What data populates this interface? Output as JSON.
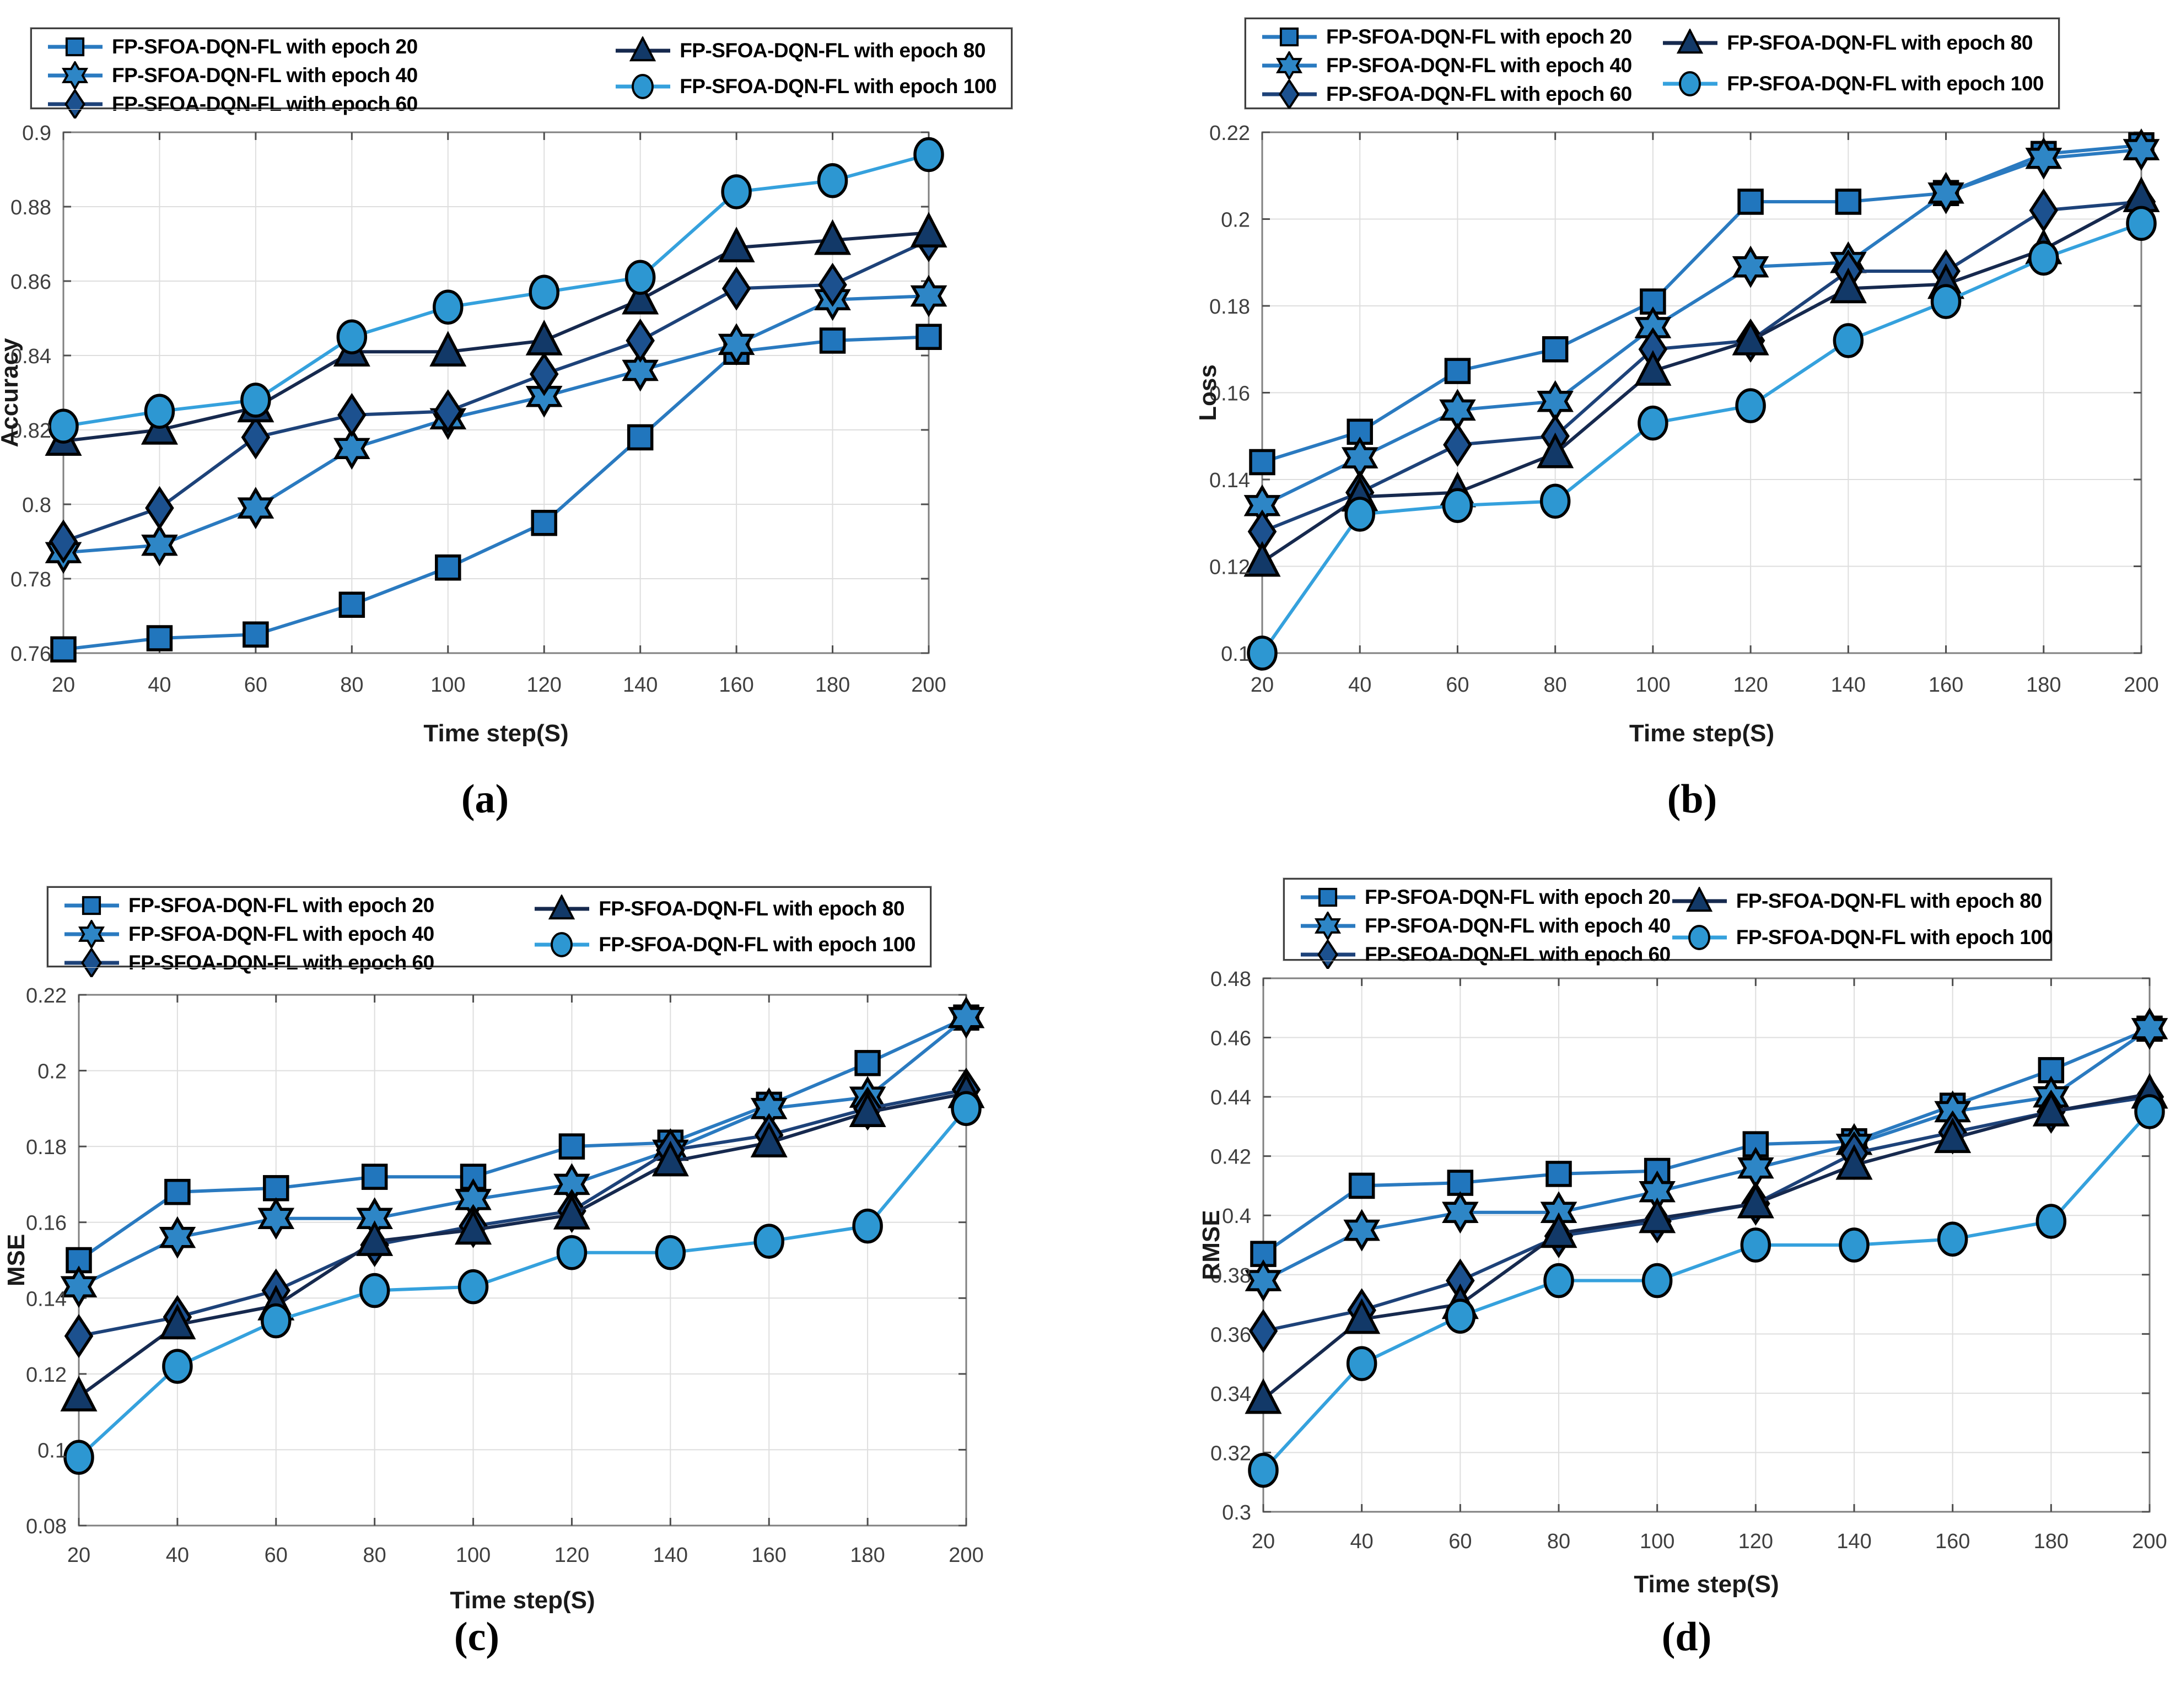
{
  "figure_caption_labels": [
    "(a)",
    "(b)",
    "(c)",
    "(d)"
  ],
  "chart_data": [
    {
      "id": "a",
      "type": "line",
      "caption": "(a)",
      "xlabel": "Time step(S)",
      "ylabel": "Accuracy",
      "xlim": [
        20,
        200
      ],
      "ylim": [
        0.76,
        0.9
      ],
      "x": [
        20,
        40,
        60,
        80,
        100,
        120,
        140,
        160,
        180,
        200
      ],
      "xtick_labels": [
        "20",
        "40",
        "60",
        "80",
        "100",
        "120",
        "140",
        "160",
        "180",
        "200"
      ],
      "ytick_values": [
        0.76,
        0.78,
        0.8,
        0.82,
        0.84,
        0.86,
        0.88,
        0.9
      ],
      "ytick_labels": [
        "0.76",
        "0.78",
        "0.8",
        "0.82",
        "0.84",
        "0.86",
        "0.88",
        "0.9"
      ],
      "grid": true,
      "legend_position": "top",
      "series": [
        {
          "name": "FP-SFOA-DQN-FL with epoch 20",
          "marker": "square",
          "line_color": "#2a7ac0",
          "marker_fill": "#2176bd",
          "values": [
            0.761,
            0.764,
            0.765,
            0.773,
            0.783,
            0.795,
            0.818,
            0.841,
            0.844,
            0.845
          ]
        },
        {
          "name": "FP-SFOA-DQN-FL with epoch 40",
          "marker": "star",
          "line_color": "#2a7ac0",
          "marker_fill": "#2e86c6",
          "values": [
            0.787,
            0.789,
            0.799,
            0.815,
            0.823,
            0.829,
            0.836,
            0.843,
            0.855,
            0.856
          ]
        },
        {
          "name": "FP-SFOA-DQN-FL with epoch 60",
          "marker": "diamond",
          "line_color": "#1d4279",
          "marker_fill": "#1c518f",
          "values": [
            0.79,
            0.799,
            0.818,
            0.824,
            0.825,
            0.835,
            0.844,
            0.858,
            0.859,
            0.871
          ]
        },
        {
          "name": "FP-SFOA-DQN-FL with epoch 80",
          "marker": "triangle",
          "line_color": "#16294e",
          "marker_fill": "#123968",
          "values": [
            0.817,
            0.82,
            0.826,
            0.841,
            0.841,
            0.844,
            0.855,
            0.869,
            0.871,
            0.873
          ]
        },
        {
          "name": "FP-SFOA-DQN-FL with epoch 100",
          "marker": "circle",
          "line_color": "#35a1dd",
          "marker_fill": "#2d97d2",
          "values": [
            0.821,
            0.825,
            0.828,
            0.845,
            0.853,
            0.857,
            0.861,
            0.884,
            0.887,
            0.894
          ]
        }
      ]
    },
    {
      "id": "b",
      "type": "line",
      "caption": "(b)",
      "xlabel": "Time step(S)",
      "ylabel": "Loss",
      "xlim": [
        20,
        200
      ],
      "ylim": [
        0.1,
        0.22
      ],
      "x": [
        20,
        40,
        60,
        80,
        100,
        120,
        140,
        160,
        180,
        200
      ],
      "xtick_labels": [
        "20",
        "40",
        "60",
        "80",
        "100",
        "120",
        "140",
        "160",
        "180",
        "200"
      ],
      "ytick_values": [
        0.1,
        0.12,
        0.14,
        0.16,
        0.18,
        0.2,
        0.22
      ],
      "ytick_labels": [
        "0.1",
        "0.12",
        "0.14",
        "0.16",
        "0.18",
        "0.2",
        "0.22"
      ],
      "grid": true,
      "legend_position": "top",
      "series": [
        {
          "name": "FP-SFOA-DQN-FL with epoch 20",
          "marker": "square",
          "line_color": "#2a7ac0",
          "marker_fill": "#2176bd",
          "values": [
            0.144,
            0.151,
            0.165,
            0.17,
            0.181,
            0.204,
            0.204,
            0.206,
            0.215,
            0.217
          ]
        },
        {
          "name": "FP-SFOA-DQN-FL with epoch 40",
          "marker": "star",
          "line_color": "#2a7ac0",
          "marker_fill": "#2e86c6",
          "values": [
            0.134,
            0.145,
            0.156,
            0.158,
            0.175,
            0.189,
            0.19,
            0.206,
            0.214,
            0.216
          ]
        },
        {
          "name": "FP-SFOA-DQN-FL with epoch 60",
          "marker": "diamond",
          "line_color": "#1d4279",
          "marker_fill": "#1c518f",
          "values": [
            0.128,
            0.137,
            0.148,
            0.15,
            0.17,
            0.172,
            0.188,
            0.188,
            0.202,
            0.204
          ]
        },
        {
          "name": "FP-SFOA-DQN-FL with epoch 80",
          "marker": "triangle",
          "line_color": "#16294e",
          "marker_fill": "#123968",
          "values": [
            0.121,
            0.136,
            0.137,
            0.146,
            0.165,
            0.172,
            0.184,
            0.185,
            0.193,
            0.205
          ]
        },
        {
          "name": "FP-SFOA-DQN-FL with epoch 100",
          "marker": "circle",
          "line_color": "#35a1dd",
          "marker_fill": "#2d97d2",
          "values": [
            0.1,
            0.132,
            0.134,
            0.135,
            0.153,
            0.157,
            0.172,
            0.181,
            0.191,
            0.199
          ]
        }
      ]
    },
    {
      "id": "c",
      "type": "line",
      "caption": "(c)",
      "xlabel": "Time step(S)",
      "ylabel": "MSE",
      "xlim": [
        20,
        200
      ],
      "ylim": [
        0.08,
        0.22
      ],
      "x": [
        20,
        40,
        60,
        80,
        100,
        120,
        140,
        160,
        180,
        200
      ],
      "xtick_labels": [
        "20",
        "40",
        "60",
        "80",
        "100",
        "120",
        "140",
        "160",
        "180",
        "200"
      ],
      "ytick_values": [
        0.08,
        0.1,
        0.12,
        0.14,
        0.16,
        0.18,
        0.2,
        0.22
      ],
      "ytick_labels": [
        "0.08",
        "0.1",
        "0.12",
        "0.14",
        "0.16",
        "0.18",
        "0.2",
        "0.22"
      ],
      "grid": true,
      "legend_position": "top",
      "series": [
        {
          "name": "FP-SFOA-DQN-FL with epoch 20",
          "marker": "square",
          "line_color": "#2a7ac0",
          "marker_fill": "#2176bd",
          "values": [
            0.15,
            0.168,
            0.169,
            0.172,
            0.172,
            0.18,
            0.181,
            0.191,
            0.202,
            0.214
          ]
        },
        {
          "name": "FP-SFOA-DQN-FL with epoch 40",
          "marker": "star",
          "line_color": "#2a7ac0",
          "marker_fill": "#2e86c6",
          "values": [
            0.143,
            0.156,
            0.161,
            0.161,
            0.166,
            0.17,
            0.179,
            0.19,
            0.193,
            0.214
          ]
        },
        {
          "name": "FP-SFOA-DQN-FL with epoch 60",
          "marker": "diamond",
          "line_color": "#1d4279",
          "marker_fill": "#1c518f",
          "values": [
            0.13,
            0.135,
            0.142,
            0.154,
            0.159,
            0.163,
            0.179,
            0.183,
            0.19,
            0.195
          ]
        },
        {
          "name": "FP-SFOA-DQN-FL with epoch 80",
          "marker": "triangle",
          "line_color": "#16294e",
          "marker_fill": "#123968",
          "values": [
            0.114,
            0.133,
            0.138,
            0.155,
            0.158,
            0.162,
            0.176,
            0.181,
            0.189,
            0.194
          ]
        },
        {
          "name": "FP-SFOA-DQN-FL with epoch 100",
          "marker": "circle",
          "line_color": "#35a1dd",
          "marker_fill": "#2d97d2",
          "values": [
            0.098,
            0.122,
            0.134,
            0.142,
            0.143,
            0.152,
            0.152,
            0.155,
            0.159,
            0.19
          ]
        }
      ]
    },
    {
      "id": "d",
      "type": "line",
      "caption": "(d)",
      "xlabel": "Time step(S)",
      "ylabel": "RMSE",
      "xlim": [
        20,
        200
      ],
      "ylim": [
        0.3,
        0.48
      ],
      "x": [
        20,
        40,
        60,
        80,
        100,
        120,
        140,
        160,
        180,
        200
      ],
      "xtick_labels": [
        "20",
        "40",
        "60",
        "80",
        "100",
        "120",
        "140",
        "160",
        "180",
        "200"
      ],
      "ytick_values": [
        0.3,
        0.32,
        0.34,
        0.36,
        0.38,
        0.4,
        0.42,
        0.44,
        0.46,
        0.48
      ],
      "ytick_labels": [
        "0.3",
        "0.32",
        "0.34",
        "0.36",
        "0.38",
        "0.4",
        "0.42",
        "0.44",
        "0.46",
        "0.48"
      ],
      "grid": true,
      "legend_position": "top",
      "series": [
        {
          "name": "FP-SFOA-DQN-FL with epoch 20",
          "marker": "square",
          "line_color": "#2a7ac0",
          "marker_fill": "#2176bd",
          "values": [
            0.387,
            0.41,
            0.411,
            0.414,
            0.415,
            0.424,
            0.425,
            0.437,
            0.449,
            0.463
          ]
        },
        {
          "name": "FP-SFOA-DQN-FL with epoch 40",
          "marker": "star",
          "line_color": "#2a7ac0",
          "marker_fill": "#2e86c6",
          "values": [
            0.378,
            0.395,
            0.401,
            0.401,
            0.408,
            0.416,
            0.424,
            0.435,
            0.44,
            0.463
          ]
        },
        {
          "name": "FP-SFOA-DQN-FL with epoch 60",
          "marker": "diamond",
          "line_color": "#1d4279",
          "marker_fill": "#1c518f",
          "values": [
            0.361,
            0.368,
            0.378,
            0.393,
            0.398,
            0.404,
            0.421,
            0.428,
            0.435,
            0.44
          ]
        },
        {
          "name": "FP-SFOA-DQN-FL with epoch 80",
          "marker": "triangle",
          "line_color": "#16294e",
          "marker_fill": "#123968",
          "values": [
            0.338,
            0.365,
            0.37,
            0.394,
            0.399,
            0.404,
            0.417,
            0.426,
            0.435,
            0.441
          ]
        },
        {
          "name": "FP-SFOA-DQN-FL with epoch 100",
          "marker": "circle",
          "line_color": "#35a1dd",
          "marker_fill": "#2d97d2",
          "values": [
            0.314,
            0.35,
            0.366,
            0.378,
            0.378,
            0.39,
            0.39,
            0.392,
            0.398,
            0.435
          ]
        }
      ]
    }
  ],
  "style_colors": {
    "grid": "#dedede",
    "axis_box": "#808080",
    "tick": "#4d4d4d",
    "tick_label": "#3f3f3f",
    "axis_label": "#1a1a1a",
    "marker_edge": "#000000"
  }
}
